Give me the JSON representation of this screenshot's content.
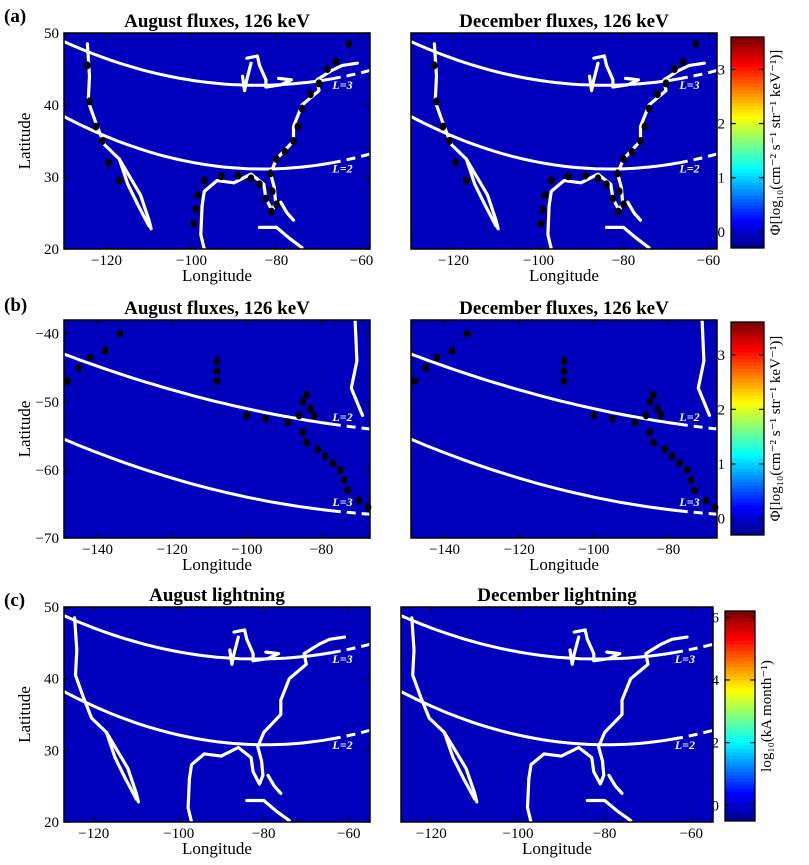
{
  "figure": {
    "row_labels": [
      "(a)",
      "(b)",
      "(c)"
    ]
  },
  "colors": {
    "colormap": [
      "#00008f",
      "#0000ff",
      "#0080ff",
      "#00ffff",
      "#80ff80",
      "#ffff00",
      "#ff8000",
      "#ff0000",
      "#800000"
    ],
    "coastline": "#ffffff",
    "l_shell": "#ffffff",
    "markers": "#000000",
    "background_low": "#0a1a8f"
  },
  "chart_data": [
    {
      "type": "heatmap",
      "panel": "a-left",
      "row": "(a)",
      "title": "August fluxes, 126 keV",
      "xlabel": "Longitude",
      "ylabel": "Latitude",
      "xlim": [
        -130,
        -58
      ],
      "ylim": [
        20,
        50
      ],
      "xticks": [
        -120,
        -100,
        -80,
        -60
      ],
      "yticks": [
        20,
        30,
        40,
        50
      ],
      "l_shells": [
        {
          "label": "L=3",
          "lat_at_lon": [
            [
              -130,
              48.8
            ],
            [
              -95,
              43.0
            ],
            [
              -58,
              44.8
            ]
          ]
        },
        {
          "label": "L=2",
          "lat_at_lon": [
            [
              -130,
              38.4
            ],
            [
              -95,
              31.5
            ],
            [
              -58,
              33.2
            ]
          ]
        }
      ],
      "colorbar": "flux"
    },
    {
      "type": "heatmap",
      "panel": "a-right",
      "row": "(a)",
      "title": "December fluxes, 126 keV",
      "xlabel": "Longitude",
      "xlim": [
        -130,
        -58
      ],
      "ylim": [
        20,
        50
      ],
      "xticks": [
        -120,
        -100,
        -80,
        -60
      ],
      "l_shells": [
        {
          "label": "L=3",
          "lat_at_lon": [
            [
              -130,
              48.8
            ],
            [
              -95,
              43.0
            ],
            [
              -58,
              44.8
            ]
          ]
        },
        {
          "label": "L=2",
          "lat_at_lon": [
            [
              -130,
              38.4
            ],
            [
              -95,
              31.5
            ],
            [
              -58,
              33.2
            ]
          ]
        }
      ],
      "colorbar": "flux"
    },
    {
      "type": "heatmap",
      "panel": "b-left",
      "row": "(b)",
      "title": "August fluxes, 126 keV",
      "xlabel": "Longitude",
      "ylabel": "Latitude",
      "xlim": [
        -149,
        -67
      ],
      "ylim": [
        -70,
        -38
      ],
      "xticks": [
        -140,
        -120,
        -100,
        -80
      ],
      "yticks": [
        -70,
        -60,
        -50,
        -40
      ],
      "l_shells": [
        {
          "label": "L=2",
          "lat_at_lon": [
            [
              -149,
              -43.0
            ],
            [
              -110,
              -50.0
            ],
            [
              -67,
              -54.0
            ]
          ]
        },
        {
          "label": "L=3",
          "lat_at_lon": [
            [
              -149,
              -55.5
            ],
            [
              -110,
              -63.0
            ],
            [
              -67,
              -66.5
            ]
          ]
        }
      ],
      "colorbar": "flux"
    },
    {
      "type": "heatmap",
      "panel": "b-right",
      "row": "(b)",
      "title": "December fluxes, 126 keV",
      "xlabel": "Longitude",
      "xlim": [
        -149,
        -67
      ],
      "ylim": [
        -70,
        -38
      ],
      "xticks": [
        -140,
        -120,
        -100,
        -80
      ],
      "l_shells": [
        {
          "label": "L=2",
          "lat_at_lon": [
            [
              -149,
              -43.0
            ],
            [
              -110,
              -50.0
            ],
            [
              -67,
              -54.0
            ]
          ]
        },
        {
          "label": "L=3",
          "lat_at_lon": [
            [
              -149,
              -55.5
            ],
            [
              -110,
              -63.0
            ],
            [
              -67,
              -66.5
            ]
          ]
        }
      ],
      "colorbar": "flux"
    },
    {
      "type": "heatmap",
      "panel": "c-left",
      "row": "(c)",
      "title": "August lightning",
      "xlabel": "Longitude",
      "ylabel": "Latitude",
      "xlim": [
        -127,
        -55
      ],
      "ylim": [
        20,
        50
      ],
      "xticks": [
        -120,
        -100,
        -80,
        -60
      ],
      "yticks": [
        20,
        30,
        40,
        50
      ],
      "l_shells": [
        {
          "label": "L=3",
          "lat_at_lon": [
            [
              -127,
              48.8
            ],
            [
              -92,
              43.0
            ],
            [
              -55,
              44.8
            ]
          ]
        },
        {
          "label": "L=2",
          "lat_at_lon": [
            [
              -127,
              38.2
            ],
            [
              -92,
              31.2
            ],
            [
              -55,
              32.8
            ]
          ]
        }
      ],
      "colorbar": "lightning"
    },
    {
      "type": "heatmap",
      "panel": "c-right",
      "row": "(c)",
      "title": "December lightning",
      "xlabel": "Longitude",
      "xlim": [
        -127,
        -55
      ],
      "ylim": [
        20,
        50
      ],
      "xticks": [
        -120,
        -100,
        -80,
        -60
      ],
      "l_shells": [
        {
          "label": "L=3",
          "lat_at_lon": [
            [
              -127,
              48.8
            ],
            [
              -92,
              43.0
            ],
            [
              -55,
              44.8
            ]
          ]
        },
        {
          "label": "L=2",
          "lat_at_lon": [
            [
              -127,
              38.2
            ],
            [
              -92,
              31.2
            ],
            [
              -55,
              32.8
            ]
          ]
        }
      ],
      "colorbar": "lightning"
    }
  ],
  "colorbars": {
    "flux": {
      "label": "Φ[log₁₀(cm⁻² s⁻¹ str⁻¹ keV⁻¹)]",
      "range": [
        -0.3,
        3.6
      ],
      "ticks": [
        0,
        1,
        2,
        3
      ]
    },
    "lightning": {
      "label": "log₁₀(kA month⁻¹)",
      "range": [
        -0.5,
        6.2
      ],
      "ticks": [
        0,
        2,
        4,
        6
      ]
    }
  }
}
